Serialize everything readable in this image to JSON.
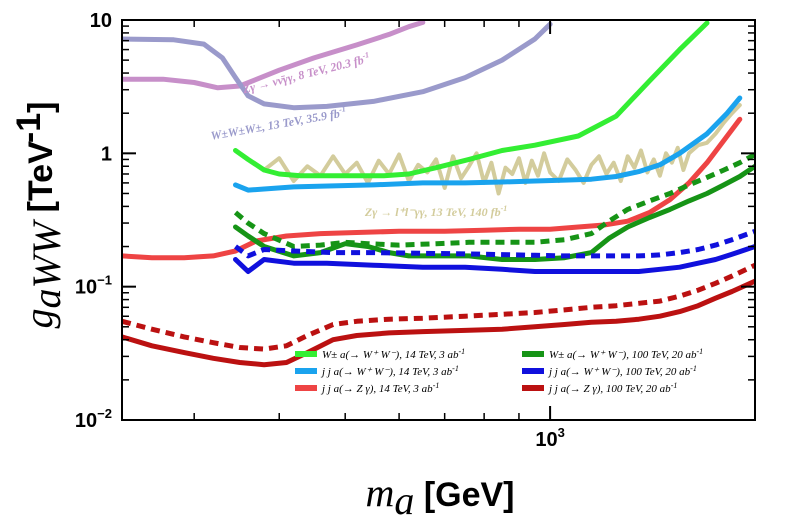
{
  "chart_data": {
    "type": "line",
    "xscale": "log",
    "yscale": "log",
    "xlim": [
      235,
      2000
    ],
    "ylim": [
      0.01,
      10
    ],
    "x_ticks": [
      {
        "value": 1000,
        "label": "10",
        "exp": "3"
      }
    ],
    "y_ticks": [
      {
        "value": 10,
        "label": "10",
        "exp": ""
      },
      {
        "value": 1,
        "label": "1",
        "exp": ""
      },
      {
        "value": 0.1,
        "label": "10",
        "exp": "−1"
      },
      {
        "value": 0.01,
        "label": "10",
        "exp": "−2"
      }
    ],
    "xlabel": {
      "var": "m",
      "sub": "a",
      "unit": "[GeV]"
    },
    "ylabel": {
      "var": "g",
      "sub": "aWW",
      "unit": "[TeV",
      "unit_exp": "-1",
      "unit_close": "]"
    },
    "series": [
      {
        "key": "zy8",
        "color": "#c78fc9",
        "dash": false,
        "width": 5,
        "x": [
          235,
          270,
          300,
          325,
          350,
          400,
          450,
          520,
          580,
          620,
          650
        ],
        "y": [
          3.6,
          3.6,
          3.4,
          3.1,
          3.2,
          4.2,
          5.2,
          6.5,
          7.8,
          8.9,
          9.6
        ]
      },
      {
        "key": "ssww13",
        "color": "#9a9acb",
        "dash": false,
        "width": 5,
        "x": [
          235,
          280,
          310,
          330,
          345,
          360,
          380,
          420,
          470,
          550,
          650,
          750,
          850,
          950,
          1000
        ],
        "y": [
          7.2,
          7.1,
          6.6,
          5.2,
          3.7,
          2.7,
          2.35,
          2.2,
          2.25,
          2.45,
          2.9,
          3.7,
          5.0,
          7.2,
          9.3
        ]
      },
      {
        "key": "zy13",
        "color": "#d3cc9c",
        "dash": false,
        "width": 4,
        "x": [
          380,
          400,
          420,
          440,
          460,
          480,
          500,
          520,
          540,
          560,
          580,
          600,
          620,
          640,
          660,
          680,
          700,
          720,
          740,
          760,
          780,
          800,
          820,
          840,
          860,
          880,
          900,
          920,
          940,
          960,
          980,
          1000,
          1030,
          1060,
          1090,
          1120,
          1150,
          1180,
          1210,
          1240,
          1270,
          1300,
          1330,
          1360,
          1390,
          1420,
          1450,
          1480,
          1510,
          1540,
          1570,
          1600,
          1650,
          1700,
          1750,
          1800,
          1850,
          1900
        ],
        "y": [
          0.75,
          0.92,
          0.62,
          0.8,
          0.68,
          0.95,
          0.7,
          0.85,
          0.6,
          0.88,
          0.7,
          0.98,
          0.62,
          0.82,
          0.72,
          0.9,
          0.55,
          0.95,
          0.65,
          0.8,
          1.0,
          0.6,
          0.85,
          0.5,
          0.78,
          0.7,
          0.92,
          0.6,
          0.88,
          0.68,
          1.0,
          0.72,
          0.62,
          0.9,
          0.75,
          0.6,
          0.82,
          0.95,
          0.7,
          0.85,
          0.62,
          0.95,
          0.78,
          1.05,
          0.72,
          0.9,
          0.68,
          1.0,
          0.85,
          1.1,
          0.75,
          1.0,
          1.15,
          1.2,
          1.4,
          1.7,
          2.0,
          2.3
        ]
      },
      {
        "key": "w_14",
        "color": "#33ee33",
        "dash": false,
        "width": 5,
        "x": [
          345,
          360,
          380,
          400,
          430,
          470,
          520,
          570,
          620,
          680,
          760,
          850,
          950,
          1100,
          1250,
          1400,
          1550,
          1700
        ],
        "y": [
          1.05,
          0.9,
          0.75,
          0.7,
          0.68,
          0.68,
          0.68,
          0.68,
          0.7,
          0.78,
          0.9,
          1.05,
          1.15,
          1.35,
          1.9,
          3.5,
          6.0,
          9.5
        ]
      },
      {
        "key": "jjw_14",
        "color": "#1aa3ee",
        "dash": false,
        "width": 5,
        "x": [
          345,
          360,
          380,
          420,
          480,
          550,
          650,
          750,
          850,
          950,
          1050,
          1150,
          1250,
          1350,
          1450,
          1550,
          1700,
          1820,
          1900
        ],
        "y": [
          0.58,
          0.53,
          0.54,
          0.56,
          0.57,
          0.58,
          0.6,
          0.6,
          0.61,
          0.62,
          0.63,
          0.64,
          0.67,
          0.73,
          0.82,
          1.0,
          1.4,
          2.0,
          2.6
        ]
      },
      {
        "key": "jjz_14",
        "color": "#ee4444",
        "dash": false,
        "width": 5,
        "x": [
          235,
          260,
          290,
          320,
          345,
          370,
          410,
          460,
          520,
          600,
          700,
          800,
          900,
          1000,
          1100,
          1200,
          1300,
          1400,
          1500,
          1600,
          1700,
          1800,
          1900
        ],
        "y": [
          0.17,
          0.165,
          0.165,
          0.17,
          0.185,
          0.22,
          0.24,
          0.25,
          0.255,
          0.26,
          0.26,
          0.265,
          0.27,
          0.27,
          0.28,
          0.29,
          0.31,
          0.36,
          0.45,
          0.6,
          0.85,
          1.25,
          1.8
        ]
      },
      {
        "key": "w_100",
        "color": "#169416",
        "dash": false,
        "width": 5,
        "x": [
          345,
          360,
          380,
          420,
          460,
          500,
          540,
          580,
          620,
          680,
          760,
          850,
          950,
          1050,
          1150,
          1220,
          1300,
          1400,
          1500,
          1600,
          1700,
          1800,
          1900,
          2000
        ],
        "y": [
          0.28,
          0.24,
          0.2,
          0.17,
          0.18,
          0.21,
          0.2,
          0.18,
          0.17,
          0.17,
          0.17,
          0.16,
          0.16,
          0.165,
          0.18,
          0.23,
          0.28,
          0.33,
          0.38,
          0.44,
          0.5,
          0.58,
          0.67,
          0.8
        ]
      },
      {
        "key": "w_100d",
        "color": "#169416",
        "dash": true,
        "width": 5,
        "x": [
          345,
          360,
          380,
          420,
          460,
          500,
          540,
          600,
          680,
          760,
          850,
          950,
          1050,
          1150,
          1220,
          1300,
          1400,
          1500,
          1600,
          1700,
          1800,
          1900,
          2000
        ],
        "y": [
          0.36,
          0.3,
          0.25,
          0.2,
          0.205,
          0.215,
          0.21,
          0.205,
          0.21,
          0.215,
          0.215,
          0.215,
          0.225,
          0.25,
          0.31,
          0.38,
          0.44,
          0.5,
          0.58,
          0.66,
          0.75,
          0.85,
          0.98
        ]
      },
      {
        "key": "jjw_100",
        "color": "#1010dd",
        "dash": false,
        "width": 5,
        "x": [
          345,
          360,
          380,
          420,
          470,
          550,
          650,
          750,
          850,
          950,
          1050,
          1150,
          1250,
          1350,
          1450,
          1550,
          1650,
          1750,
          1850,
          2000
        ],
        "y": [
          0.16,
          0.13,
          0.16,
          0.15,
          0.15,
          0.145,
          0.14,
          0.14,
          0.135,
          0.13,
          0.13,
          0.13,
          0.13,
          0.13,
          0.135,
          0.14,
          0.15,
          0.16,
          0.175,
          0.2
        ]
      },
      {
        "key": "jjw_100d",
        "color": "#1010dd",
        "dash": true,
        "width": 5,
        "x": [
          345,
          360,
          380,
          420,
          480,
          550,
          650,
          750,
          850,
          950,
          1050,
          1150,
          1250,
          1350,
          1450,
          1550,
          1650,
          1750,
          1850,
          2000
        ],
        "y": [
          0.2,
          0.17,
          0.19,
          0.185,
          0.18,
          0.18,
          0.178,
          0.176,
          0.174,
          0.172,
          0.17,
          0.17,
          0.17,
          0.17,
          0.173,
          0.18,
          0.19,
          0.205,
          0.225,
          0.26
        ]
      },
      {
        "key": "jjz_100",
        "color": "#bb1111",
        "dash": false,
        "width": 5,
        "x": [
          235,
          260,
          290,
          320,
          350,
          380,
          410,
          440,
          480,
          520,
          580,
          650,
          750,
          850,
          950,
          1050,
          1150,
          1250,
          1350,
          1450,
          1550,
          1650,
          1750,
          1850,
          2000
        ],
        "y": [
          0.042,
          0.036,
          0.032,
          0.029,
          0.027,
          0.026,
          0.027,
          0.032,
          0.04,
          0.043,
          0.045,
          0.046,
          0.047,
          0.048,
          0.05,
          0.052,
          0.054,
          0.055,
          0.057,
          0.06,
          0.065,
          0.072,
          0.082,
          0.092,
          0.11
        ]
      },
      {
        "key": "jjz_100d",
        "color": "#bb1111",
        "dash": true,
        "width": 5,
        "x": [
          235,
          260,
          290,
          320,
          350,
          380,
          410,
          440,
          480,
          520,
          580,
          650,
          750,
          850,
          950,
          1050,
          1150,
          1250,
          1350,
          1450,
          1550,
          1650,
          1750,
          1850,
          2000
        ],
        "y": [
          0.055,
          0.048,
          0.042,
          0.038,
          0.035,
          0.034,
          0.036,
          0.043,
          0.052,
          0.055,
          0.057,
          0.058,
          0.06,
          0.062,
          0.064,
          0.067,
          0.07,
          0.072,
          0.075,
          0.078,
          0.085,
          0.094,
          0.106,
          0.12,
          0.145
        ]
      }
    ],
    "annotations": [
      {
        "key": "zy8",
        "color": "#c78fc9",
        "text": "Zγ → νν̄γγ, 8 TeV, 20.3 fb",
        "exp": "-1",
        "x": 440,
        "y": 3.7,
        "rotate": -14
      },
      {
        "key": "ssww13",
        "color": "#9a9acb",
        "text": "W±W±W±, 13 TeV, 35.9 fb",
        "exp": "-1",
        "x": 400,
        "y": 1.55,
        "rotate": -10
      },
      {
        "key": "zy13",
        "color": "#d3cc9c",
        "text": "Zγ → l⁺l⁻γγ, 13 TeV, 140 fb",
        "exp": "-1",
        "x": 680,
        "y": 0.34,
        "rotate": 0
      }
    ],
    "legend": {
      "placement": "bottom",
      "entries": [
        {
          "key": "w_14",
          "color": "#33ee33",
          "dash": false,
          "label": "W± a(→ W⁺ W⁻), 14 TeV, 3 ab",
          "exp": "-1"
        },
        {
          "key": "jjw_14",
          "color": "#1aa3ee",
          "dash": false,
          "label": "j j a(→ W⁺ W⁻),  14 TeV, 3 ab",
          "exp": "-1"
        },
        {
          "key": "jjz_14",
          "color": "#ee4444",
          "dash": false,
          "label": "j j a(→ Z γ),        14 TeV, 3 ab",
          "exp": "-1"
        },
        {
          "key": "w_100",
          "color": "#169416",
          "dash": false,
          "label": "W± a(→ W⁺ W⁻), 100 TeV, 20 ab",
          "exp": "-1"
        },
        {
          "key": "jjw_100",
          "color": "#1010dd",
          "dash": false,
          "label": "j j a(→ W⁺ W⁻),  100 TeV, 20 ab",
          "exp": "-1"
        },
        {
          "key": "jjz_100",
          "color": "#bb1111",
          "dash": false,
          "label": "j j a(→ Z γ),        100 TeV, 20 ab",
          "exp": "-1"
        }
      ]
    },
    "grid": false
  }
}
